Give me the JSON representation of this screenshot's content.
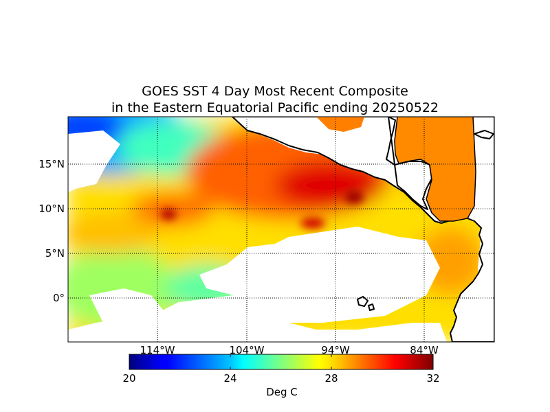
{
  "title_line1": "GOES SST 4 Day Most Recent Composite",
  "title_line2": "in the Eastern Equatorial Pacific ending 20250522",
  "lat_labels": [
    "15°N",
    "10°N",
    "5°N",
    "0°"
  ],
  "lon_labels": [
    "114°W",
    "104°W",
    "94°W",
    "84°W"
  ],
  "colorbar": {
    "title": "Deg C",
    "ticks": [
      "20",
      "24",
      "28",
      "32"
    ],
    "min": 20,
    "max": 32,
    "colormap": "jet"
  },
  "map": {
    "lon_range": [
      -124,
      -76
    ],
    "lat_range": [
      -5,
      20
    ],
    "no_data_color": "#ffffff",
    "coastline_color": "#000000"
  }
}
